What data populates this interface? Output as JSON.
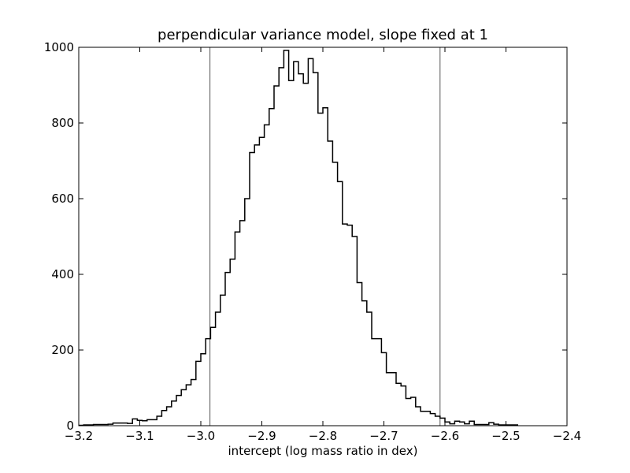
{
  "chart_data": {
    "type": "histogram",
    "title": "perpendicular variance model, slope fixed at 1",
    "xlabel": "intercept (log mass ratio in dex)",
    "ylabel": "",
    "xlim": [
      -3.2,
      -2.4
    ],
    "ylim": [
      0,
      1000
    ],
    "xticks": [
      -3.2,
      -3.1,
      -3.0,
      -2.9,
      -2.8,
      -2.7,
      -2.6,
      -2.5,
      -2.4
    ],
    "xtick_labels": [
      "−3.2",
      "−3.1",
      "−3.0",
      "−2.9",
      "−2.8",
      "−2.7",
      "−2.6",
      "−2.5",
      "−2.4"
    ],
    "yticks": [
      0,
      200,
      400,
      600,
      800,
      1000
    ],
    "ytick_labels": [
      "0",
      "200",
      "400",
      "600",
      "800",
      "1000"
    ],
    "grid": false,
    "vertical_lines": [
      -2.985,
      -2.608
    ],
    "bin_start": -3.2,
    "bin_width": 0.008,
    "counts": [
      1,
      2,
      2,
      3,
      3,
      3,
      4,
      7,
      7,
      7,
      6,
      18,
      14,
      13,
      16,
      16,
      25,
      40,
      50,
      65,
      80,
      95,
      108,
      122,
      170,
      190,
      230,
      260,
      300,
      345,
      405,
      440,
      512,
      542,
      600,
      722,
      742,
      762,
      795,
      838,
      898,
      946,
      992,
      912,
      962,
      930,
      905,
      970,
      933,
      826,
      840,
      752,
      696,
      645,
      533,
      530,
      500,
      378,
      330,
      300,
      230,
      230,
      193,
      140,
      140,
      112,
      105,
      72,
      75,
      50,
      38,
      38,
      32,
      25,
      20,
      10,
      5,
      12,
      10,
      5,
      12,
      3,
      3,
      3,
      8,
      4,
      2,
      2,
      2,
      2
    ]
  }
}
